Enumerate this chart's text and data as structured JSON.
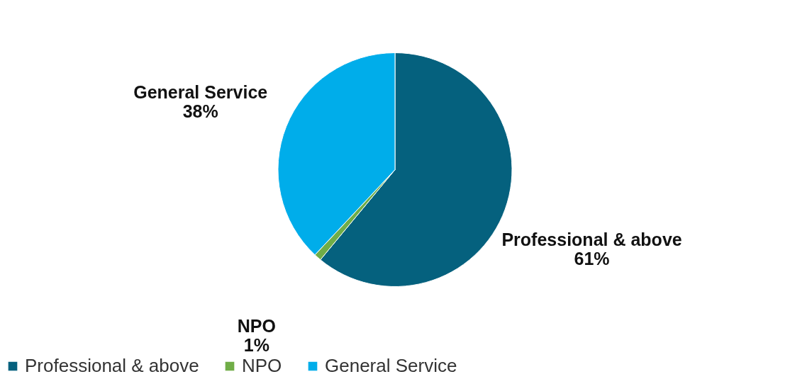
{
  "chart_data": {
    "type": "pie",
    "categories": [
      "Professional & above",
      "NPO",
      "General Service"
    ],
    "values": [
      61,
      1,
      38
    ],
    "colors": [
      "#05617e",
      "#70ad47",
      "#00adea"
    ],
    "value_labels": [
      "61%",
      "1%",
      "38%"
    ],
    "legend": "bottom"
  }
}
